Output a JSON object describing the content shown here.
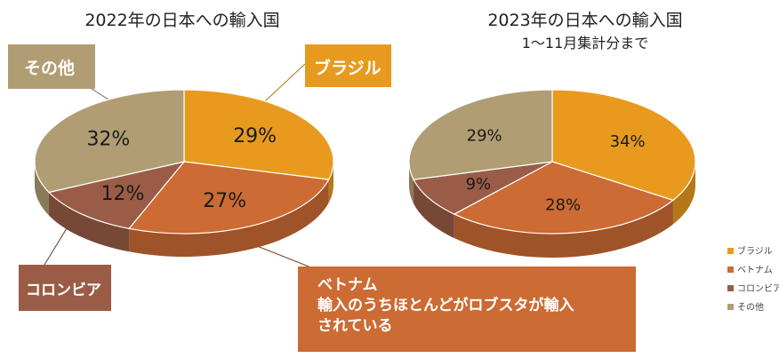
{
  "chart_data": [
    {
      "type": "pie",
      "title": "2022年の日本への輸入国",
      "slices": [
        {
          "label": "ブラジル",
          "value": 29,
          "label_text": "29%",
          "color": "#e89a1f"
        },
        {
          "label": "ベトナム",
          "value": 27,
          "label_text": "27%",
          "color": "#cc6b33"
        },
        {
          "label": "コロンビア",
          "value": 12,
          "label_text": "12%",
          "color": "#9a5c46"
        },
        {
          "label": "その他",
          "value": 32,
          "label_text": "32%",
          "color": "#b19d74"
        }
      ]
    },
    {
      "type": "pie",
      "title": "2023年の日本への輸入国",
      "subtitle": "1～11月集計分まで",
      "slices": [
        {
          "label": "ブラジル",
          "value": 34,
          "label_text": "34%",
          "color": "#e89a1f"
        },
        {
          "label": "ベトナム",
          "value": 28,
          "label_text": "28%",
          "color": "#cc6b33"
        },
        {
          "label": "コロンビア",
          "value": 9,
          "label_text": "9%",
          "color": "#9a5c46"
        },
        {
          "label": "その他",
          "value": 29,
          "label_text": "29%",
          "color": "#b19d74"
        }
      ]
    }
  ],
  "callouts": {
    "other": "その他",
    "brazil": "ブラジル",
    "colombia": "コロンビア",
    "vietnam_line1": "ベトナム",
    "vietnam_line2": "輸入のうちほとんどがロブスタが輸入",
    "vietnam_line3": "されている"
  },
  "legend": [
    {
      "label": "ブラジル",
      "color": "#e89a1f"
    },
    {
      "label": "ベトナム",
      "color": "#cc6b33"
    },
    {
      "label": "コロンビア",
      "color": "#9a5c46"
    },
    {
      "label": "その他",
      "color": "#b19d74"
    }
  ]
}
